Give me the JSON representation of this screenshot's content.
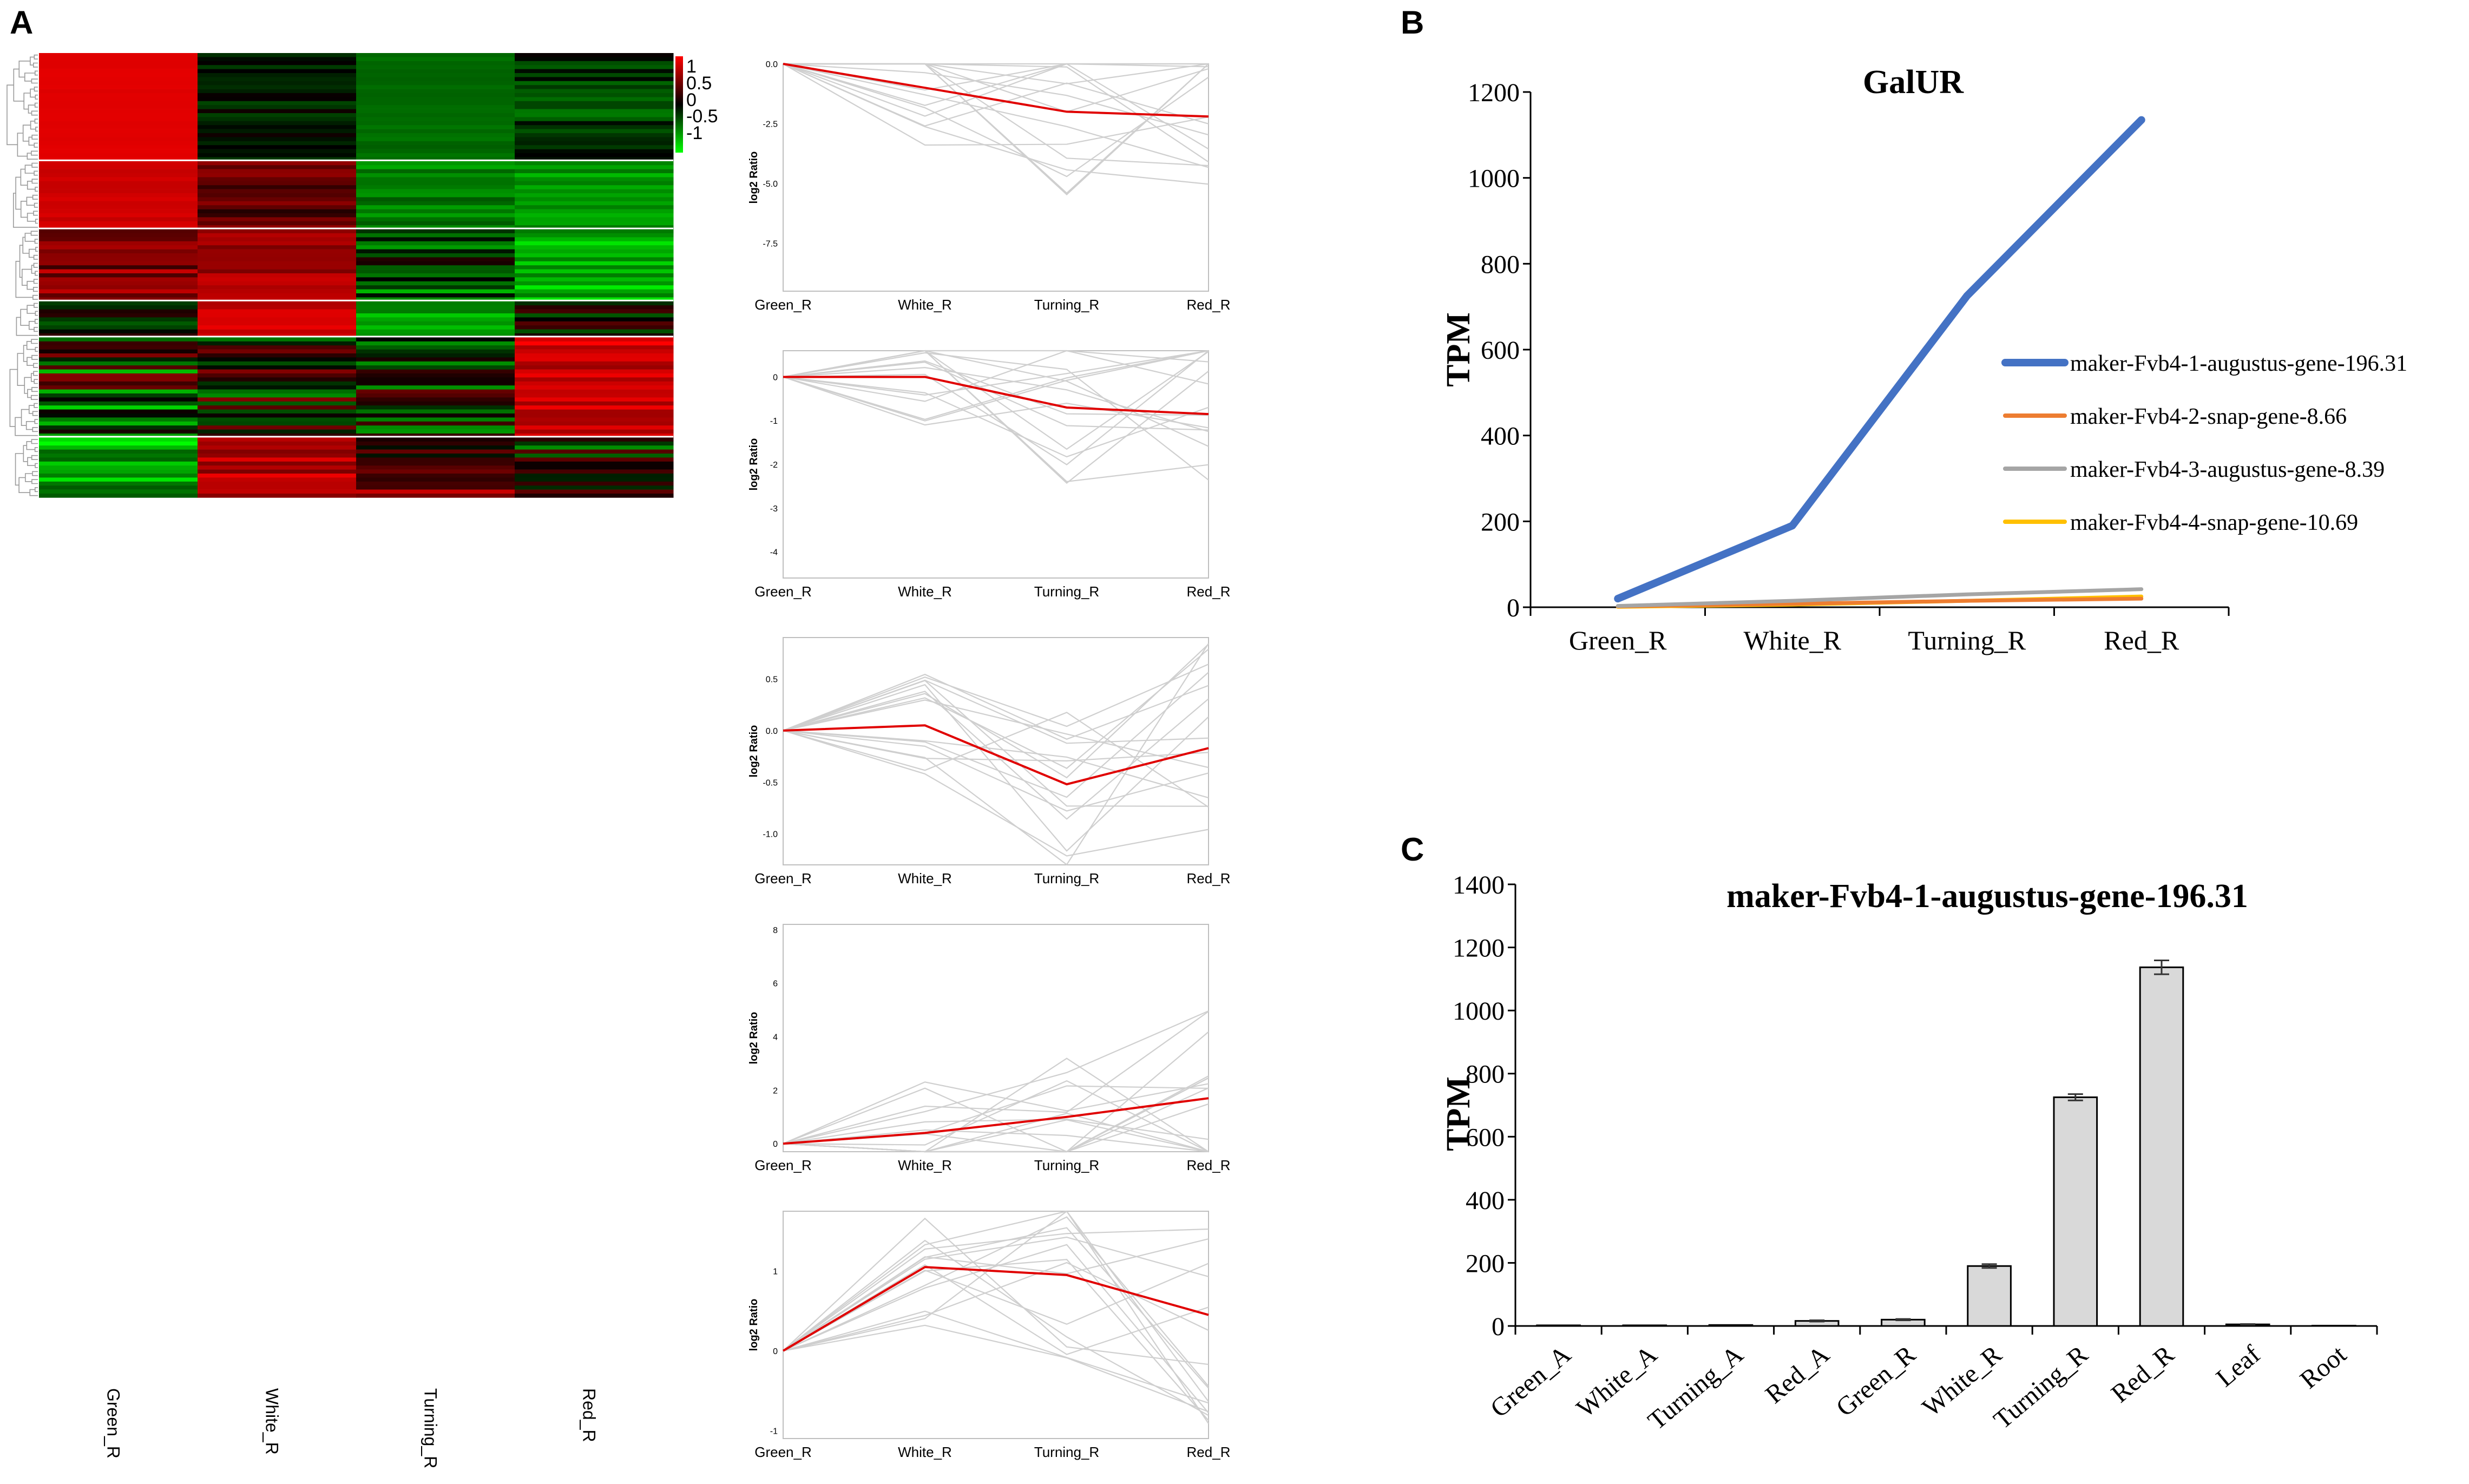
{
  "panels": {
    "a": "A",
    "b": "B",
    "c": "C"
  },
  "chart_data": [
    {
      "type": "heatmap",
      "panel": "A",
      "columns": [
        "Green_R",
        "White_R",
        "Turning_R",
        "Red_R"
      ],
      "colorbar": {
        "ticks": [
          "1",
          "0.5",
          "0",
          "-0.5",
          "-1"
        ],
        "min_color": "#00ff00",
        "mid_color": "#000000",
        "max_color": "#ff0000",
        "range": [
          -1.5,
          1.5
        ]
      },
      "clusters": [
        {
          "rows": 27,
          "profile": [
            [
              1.35,
              1.3
            ],
            [
              -0.45,
              0.12
            ],
            [
              -0.7,
              -0.55
            ],
            [
              -0.72,
              0.05
            ]
          ]
        },
        {
          "rows": 17,
          "profile": [
            [
              1.3,
              1.1
            ],
            [
              0.2,
              0.95
            ],
            [
              -1.0,
              -0.5
            ],
            [
              -1.1,
              -0.7
            ]
          ]
        },
        {
          "rows": 18,
          "profile": [
            [
              0.3,
              1.2
            ],
            [
              0.7,
              1.2
            ],
            [
              -1.1,
              0.3
            ],
            [
              -1.45,
              -0.7
            ]
          ]
        },
        {
          "rows": 9,
          "profile": [
            [
              -0.6,
              0.5
            ],
            [
              1.4,
              1.0
            ],
            [
              -1.3,
              -0.6
            ],
            [
              -0.6,
              0.6
            ]
          ]
        },
        {
          "rows": 25,
          "profile": [
            [
              -1.3,
              0.8
            ],
            [
              -0.9,
              0.8
            ],
            [
              -0.9,
              0.6
            ],
            [
              0.9,
              1.5
            ]
          ]
        },
        {
          "rows": 15,
          "profile": [
            [
              -1.5,
              -0.5
            ],
            [
              0.7,
              1.5
            ],
            [
              -0.2,
              1.3
            ],
            [
              -0.9,
              0.6
            ]
          ]
        }
      ]
    },
    {
      "type": "line",
      "panel": "A",
      "trend_profiles": [
        {
          "ylabel": "log2 Ratio",
          "x": [
            "Green_R",
            "White_R",
            "Turning_R",
            "Red_R"
          ],
          "yticks": [
            "0.0",
            "-2.5",
            "-5.0",
            "-7.5"
          ],
          "ylim": [
            -9.5,
            0
          ],
          "centroid": [
            0,
            -1.0,
            -2.0,
            -2.2
          ]
        },
        {
          "ylabel": "log2 Ratio",
          "x": [
            "Green_R",
            "White_R",
            "Turning_R",
            "Red_R"
          ],
          "yticks": [
            "0",
            "-1",
            "-2",
            "-3",
            "-4"
          ],
          "ylim": [
            -4.6,
            0.6
          ],
          "centroid": [
            0,
            0,
            -0.7,
            -0.85
          ]
        },
        {
          "ylabel": "log2 Ratio",
          "x": [
            "Green_R",
            "White_R",
            "Turning_R",
            "Red_R"
          ],
          "yticks": [
            "0.5",
            "0.0",
            "-0.5",
            "-1.0"
          ],
          "ylim": [
            -1.3,
            0.9
          ],
          "centroid": [
            0,
            0.05,
            -0.52,
            -0.17
          ]
        },
        {
          "ylabel": "log2 Ratio",
          "x": [
            "Green_R",
            "White_R",
            "Turning_R",
            "Red_R"
          ],
          "yticks": [
            "8",
            "6",
            "4",
            "2",
            "0"
          ],
          "ylim": [
            -0.3,
            8.2
          ],
          "centroid": [
            0,
            0.4,
            1.0,
            1.7
          ]
        },
        {
          "ylabel": "log2 Ratio",
          "x": [
            "Green_R",
            "White_R",
            "Turning_R",
            "Red_R"
          ],
          "yticks": [
            "1",
            "0",
            "-1"
          ],
          "ylim": [
            -1.1,
            1.75
          ],
          "centroid": [
            0,
            1.05,
            0.95,
            0.45
          ]
        }
      ]
    },
    {
      "type": "line",
      "panel": "B",
      "title": "GalUR",
      "ylabel": "TPM",
      "xlabel": "",
      "categories": [
        "Green_R",
        "White_R",
        "Turning_R",
        "Red_R"
      ],
      "ylim": [
        0,
        1200
      ],
      "yticks": [
        "0",
        "200",
        "400",
        "600",
        "800",
        "1000",
        "1200"
      ],
      "legend_position": "right",
      "series": [
        {
          "name": "maker-Fvb4-1-augustus-gene-196.31",
          "color": "#4472c4",
          "values": [
            20,
            190,
            725,
            1135
          ]
        },
        {
          "name": "maker-Fvb4-2-snap-gene-8.66",
          "color": "#ed7d31",
          "values": [
            2,
            8,
            15,
            20
          ]
        },
        {
          "name": "maker-Fvb4-3-augustus-gene-8.39",
          "color": "#a5a5a5",
          "values": [
            3,
            15,
            30,
            42
          ]
        },
        {
          "name": "maker-Fvb4-4-snap-gene-10.69",
          "color": "#ffc000",
          "values": [
            1,
            6,
            15,
            25
          ]
        }
      ]
    },
    {
      "type": "bar",
      "panel": "C",
      "title": "maker-Fvb4-1-augustus-gene-196.31",
      "ylabel": "TPM",
      "xlabel": "",
      "categories": [
        "Green_A",
        "White_A",
        "Turning_A",
        "Red_A",
        "Green_R",
        "White_R",
        "Turning_R",
        "Red_R",
        "Leaf",
        "Root"
      ],
      "values": [
        2,
        2,
        3,
        16,
        20,
        190,
        725,
        1137,
        5,
        1
      ],
      "errors": [
        0,
        0,
        0,
        2,
        2,
        6,
        10,
        22,
        1,
        0
      ],
      "ylim": [
        0,
        1400
      ],
      "yticks": [
        "0",
        "200",
        "400",
        "600",
        "800",
        "1000",
        "1200",
        "1400"
      ]
    }
  ]
}
